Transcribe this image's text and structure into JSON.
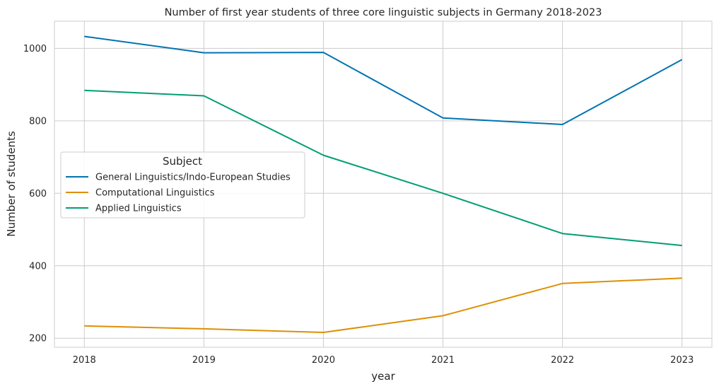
{
  "chart_data": {
    "type": "line",
    "title": "Number of first year students of three core linguistic subjects in Germany 2018-2023",
    "xlabel": "year",
    "ylabel": "Number of students",
    "x": [
      2018,
      2019,
      2020,
      2021,
      2022,
      2023
    ],
    "x_ticks": [
      "2018",
      "2019",
      "2020",
      "2021",
      "2022",
      "2023"
    ],
    "y_ticks": [
      "200",
      "400",
      "600",
      "800",
      "1000"
    ],
    "ylim": [
      175,
      1075
    ],
    "xlim": [
      2017.75,
      2023.25
    ],
    "grid": true,
    "legend": {
      "title": "Subject",
      "placement": "center-left"
    },
    "series": [
      {
        "name": "General Linguistics/Indo-European Studies",
        "color": "#0173b2",
        "values": [
          1033,
          988,
          989,
          808,
          790,
          969
        ]
      },
      {
        "name": "Computational Linguistics",
        "color": "#de8f05",
        "values": [
          234,
          226,
          216,
          262,
          351,
          366
        ]
      },
      {
        "name": "Applied Linguistics",
        "color": "#029e73",
        "values": [
          884,
          869,
          705,
          600,
          489,
          456
        ]
      }
    ]
  }
}
